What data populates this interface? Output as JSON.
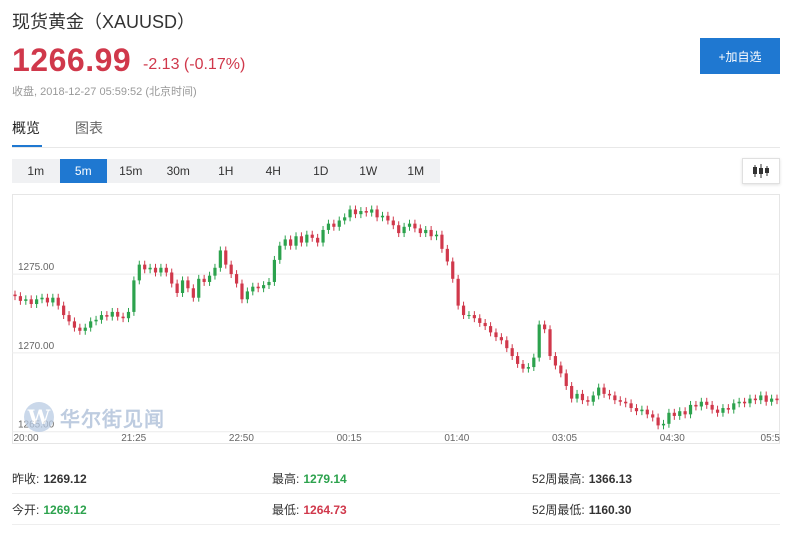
{
  "header": {
    "title": "现货黄金（XAUUSD）",
    "price": "1266.99",
    "change": "-2.13 (-0.17%)",
    "close_label": "收盘,",
    "close_time": "2018-12-27 05:59:52 (北京时间)",
    "add_button": "+加自选"
  },
  "tabs": [
    {
      "label": "概览",
      "active": true
    },
    {
      "label": "图表",
      "active": false
    }
  ],
  "periods": [
    {
      "label": "1m",
      "active": false
    },
    {
      "label": "5m",
      "active": true
    },
    {
      "label": "15m",
      "active": false
    },
    {
      "label": "30m",
      "active": false
    },
    {
      "label": "1H",
      "active": false
    },
    {
      "label": "4H",
      "active": false
    },
    {
      "label": "1D",
      "active": false
    },
    {
      "label": "1W",
      "active": false
    },
    {
      "label": "1M",
      "active": false
    }
  ],
  "chart_data": {
    "type": "candlestick",
    "xlabel": "",
    "ylabel": "",
    "y_ticks": [
      "1275.00",
      "1270.00",
      "1265.00"
    ],
    "ylim": [
      1264.6,
      1279.7
    ],
    "x_ticks": [
      "20:00",
      "21:25",
      "22:50",
      "00:15",
      "01:40",
      "03:05",
      "04:30",
      "05:5"
    ],
    "colors": {
      "up": "#2ca24d",
      "down": "#d0384b"
    },
    "closes": [
      1273.6,
      1273.3,
      1273.4,
      1273.1,
      1273.4,
      1273.5,
      1273.2,
      1273.5,
      1273.0,
      1272.4,
      1272.0,
      1271.6,
      1271.4,
      1271.6,
      1272.0,
      1272.1,
      1272.4,
      1272.3,
      1272.6,
      1272.3,
      1272.2,
      1272.6,
      1274.6,
      1275.6,
      1275.3,
      1275.4,
      1275.1,
      1275.4,
      1275.1,
      1274.4,
      1273.8,
      1274.6,
      1274.1,
      1273.5,
      1274.7,
      1274.5,
      1274.9,
      1275.4,
      1276.5,
      1275.6,
      1275.0,
      1274.4,
      1273.4,
      1273.9,
      1274.2,
      1274.1,
      1274.3,
      1274.5,
      1275.9,
      1276.8,
      1277.2,
      1276.8,
      1277.4,
      1277.0,
      1277.5,
      1277.3,
      1277.0,
      1277.8,
      1278.2,
      1278.0,
      1278.4,
      1278.6,
      1279.1,
      1278.8,
      1279.0,
      1278.9,
      1279.1,
      1278.6,
      1278.7,
      1278.4,
      1278.1,
      1277.6,
      1278.0,
      1278.2,
      1277.9,
      1277.6,
      1277.8,
      1277.4,
      1277.5,
      1276.6,
      1275.8,
      1274.7,
      1273.0,
      1272.4,
      1272.4,
      1272.2,
      1271.9,
      1271.7,
      1271.3,
      1271.0,
      1270.8,
      1270.3,
      1269.8,
      1269.3,
      1269.0,
      1269.1,
      1269.7,
      1271.8,
      1271.5,
      1269.8,
      1269.2,
      1268.7,
      1267.9,
      1267.1,
      1267.4,
      1267.0,
      1266.9,
      1267.3,
      1267.8,
      1267.4,
      1267.3,
      1267.0,
      1266.9,
      1266.8,
      1266.5,
      1266.3,
      1266.4,
      1266.1,
      1265.9,
      1265.4,
      1265.5,
      1266.2,
      1266.0,
      1266.3,
      1266.1,
      1266.7,
      1266.6,
      1266.9,
      1266.7,
      1266.4,
      1266.2,
      1266.5,
      1266.4,
      1266.8,
      1266.9,
      1266.8,
      1267.1,
      1267.0,
      1267.3,
      1266.9,
      1267.1,
      1267.0
    ]
  },
  "watermark": {
    "text": "华尔街见闻",
    "logo_letter": "W"
  },
  "stats": {
    "rows": [
      [
        {
          "label": "昨收:",
          "value": "1269.12",
          "tone": ""
        },
        {
          "label": "最高:",
          "value": "1279.14",
          "tone": "up"
        },
        {
          "label": "52周最高:",
          "value": "1366.13",
          "tone": ""
        }
      ],
      [
        {
          "label": "今开:",
          "value": "1269.12",
          "tone": "up"
        },
        {
          "label": "最低:",
          "value": "1264.73",
          "tone": "down"
        },
        {
          "label": "52周最低:",
          "value": "1160.30",
          "tone": ""
        }
      ]
    ]
  }
}
